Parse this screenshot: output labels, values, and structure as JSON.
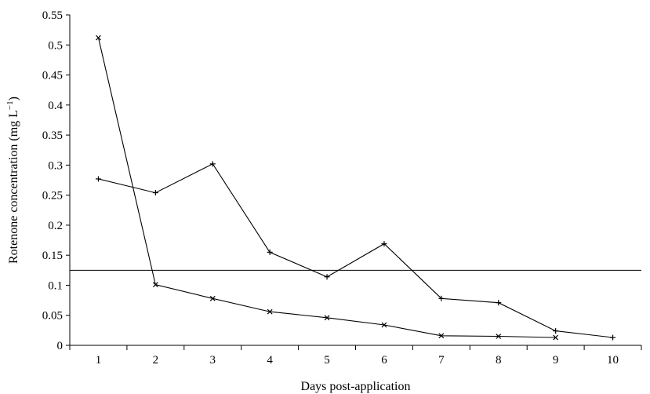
{
  "chart_data": {
    "type": "line",
    "title": "",
    "xlabel": "Days post-application",
    "ylabel": "Rotenone concentration (mg L",
    "ylabel_superscript": "−1",
    "ylabel_suffix": ")",
    "x": [
      1,
      2,
      3,
      4,
      5,
      6,
      7,
      8,
      9,
      10
    ],
    "xlim": [
      0.5,
      10.5
    ],
    "ylim": [
      0,
      0.55
    ],
    "x_ticks": [
      "1",
      "2",
      "3",
      "4",
      "5",
      "6",
      "7",
      "8",
      "9",
      "10"
    ],
    "y_ticks": [
      "0",
      "0.05",
      "0.1",
      "0.15",
      "0.2",
      "0.25",
      "0.3",
      "0.35",
      "0.4",
      "0.45",
      "0.5",
      "0.55"
    ],
    "grid": false,
    "reference_line": {
      "y": 0.125
    },
    "series": [
      {
        "marker": "plus",
        "color": "#000000",
        "points": [
          [
            1,
            0.277
          ],
          [
            2,
            0.254
          ],
          [
            3,
            0.302
          ],
          [
            4,
            0.155
          ],
          [
            5,
            0.114
          ],
          [
            6,
            0.169
          ],
          [
            7,
            0.078
          ],
          [
            8,
            0.071
          ],
          [
            9,
            0.024
          ],
          [
            10,
            0.013
          ]
        ]
      },
      {
        "marker": "cross",
        "color": "#000000",
        "points": [
          [
            1,
            0.512
          ],
          [
            2,
            0.101
          ],
          [
            3,
            0.078
          ],
          [
            4,
            0.056
          ],
          [
            5,
            0.046
          ],
          [
            6,
            0.034
          ],
          [
            7,
            0.016
          ],
          [
            8,
            0.015
          ],
          [
            9,
            0.013
          ]
        ]
      }
    ]
  }
}
